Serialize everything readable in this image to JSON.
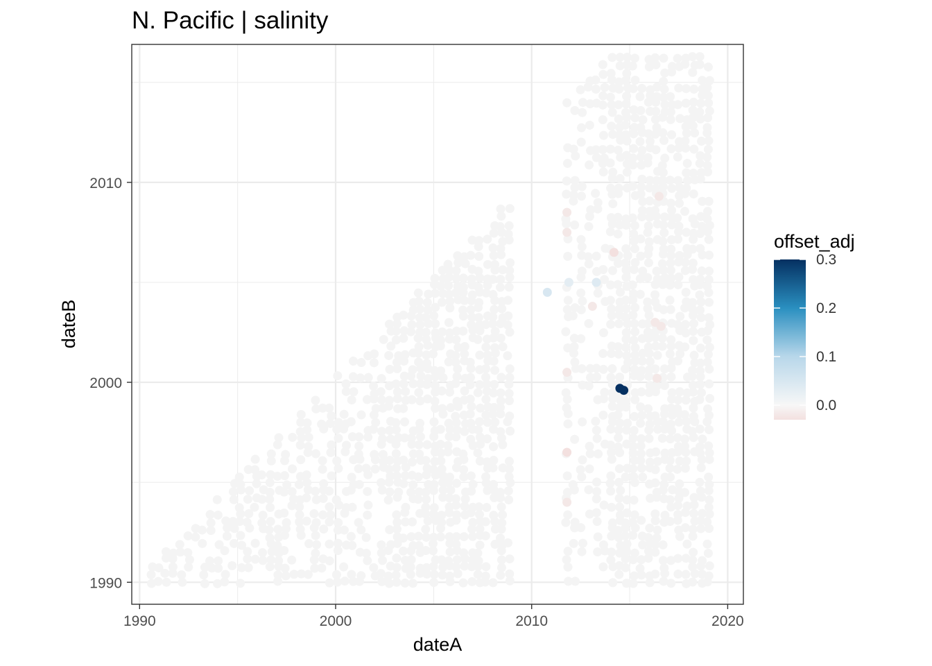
{
  "chart_data": {
    "type": "scatter",
    "title": "N. Pacific | salinity",
    "xlabel": "dateA",
    "ylabel": "dateB",
    "xlim": [
      1989.6,
      2020.8
    ],
    "ylim": [
      1988.9,
      2016.9
    ],
    "x_ticks": [
      1990,
      2000,
      2010,
      2020
    ],
    "x_tick_labels": [
      "1990",
      "2000",
      "2010",
      "2020"
    ],
    "y_ticks": [
      1990,
      2000,
      2010
    ],
    "y_tick_labels": [
      "1990",
      "2000",
      "2010"
    ],
    "grid": true,
    "legend": {
      "title": "offset_adj",
      "placement": "right",
      "type": "colorbar",
      "range": [
        -0.03,
        0.3
      ],
      "breaks": [
        0.0,
        0.1,
        0.2,
        0.3
      ],
      "break_labels": [
        "0.0",
        "0.1",
        "0.2",
        "0.3"
      ],
      "colors": {
        "low": "#f3e0df",
        "mid": "#f7f7f7",
        "light_blue": "#b8d7ea",
        "blue": "#2a8fc0",
        "high": "#053061"
      }
    },
    "point_color_default": "#f4f4f4",
    "points": [],
    "highlight_points": [
      {
        "x": 2014.7,
        "y": 1999.6,
        "value": 0.3
      },
      {
        "x": 2014.5,
        "y": 1999.7,
        "value": 0.3
      },
      {
        "x": 2010.8,
        "y": 2004.5,
        "value": 0.05
      },
      {
        "x": 2011.8,
        "y": 1996.5,
        "value": -0.03
      },
      {
        "x": 2011.8,
        "y": 2000.5,
        "value": -0.02
      },
      {
        "x": 2011.8,
        "y": 1994.0,
        "value": -0.02
      },
      {
        "x": 2011.8,
        "y": 2008.5,
        "value": -0.02
      },
      {
        "x": 2011.8,
        "y": 2007.5,
        "value": -0.02
      },
      {
        "x": 2014.2,
        "y": 2006.5,
        "value": -0.03
      },
      {
        "x": 2016.3,
        "y": 2003.0,
        "value": -0.02
      },
      {
        "x": 2016.6,
        "y": 2002.8,
        "value": -0.02
      },
      {
        "x": 2013.1,
        "y": 2003.8,
        "value": -0.02
      },
      {
        "x": 2016.5,
        "y": 2009.3,
        "value": -0.02
      },
      {
        "x": 2016.4,
        "y": 2000.2,
        "value": -0.02
      },
      {
        "x": 2013.3,
        "y": 2005.0,
        "value": 0.04
      },
      {
        "x": 2011.9,
        "y": 2005.0,
        "value": 0.03
      }
    ]
  }
}
